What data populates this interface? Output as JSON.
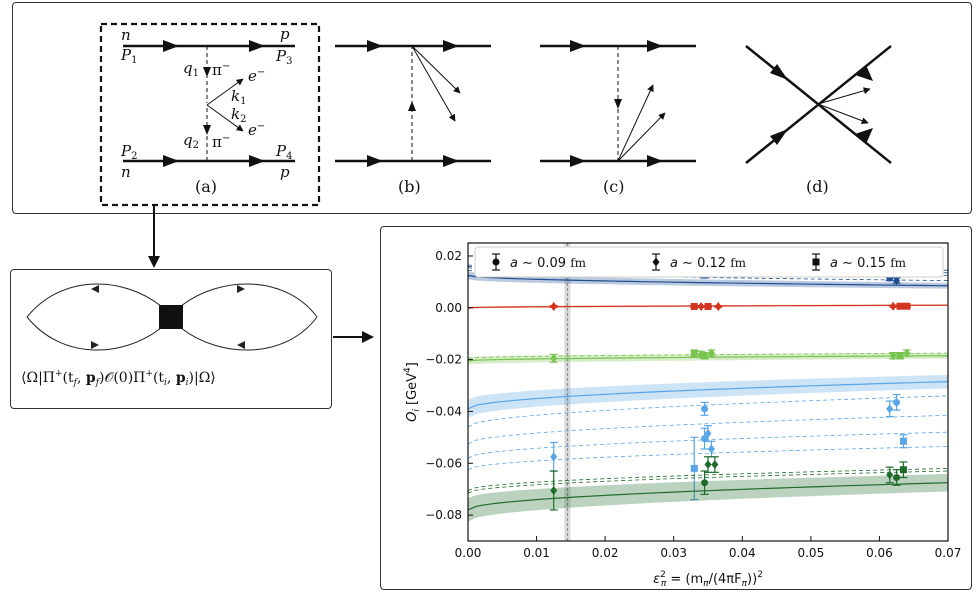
{
  "top_panel": {
    "diagram_a": {
      "labels": {
        "n_top": "n",
        "P1": "P",
        "P1_sub": "1",
        "p_top": "p",
        "P3": "P",
        "P3_sub": "3",
        "q1": "q",
        "q1_sub": "1",
        "pi_top": "π",
        "pi_top_sup": "−",
        "e_top": "e",
        "e_top_sup": "−",
        "k1": "k",
        "k1_sub": "1",
        "k2": "k",
        "k2_sub": "2",
        "e_bot": "e",
        "e_bot_sup": "−",
        "q2": "q",
        "q2_sub": "2",
        "pi_bot": "π",
        "pi_bot_sup": "−",
        "P2": "P",
        "P2_sub": "2",
        "n_bot": "n",
        "P4": "P",
        "P4_sub": "4",
        "p_bot": "p"
      },
      "caption": "(a)"
    },
    "captions": {
      "b": "(b)",
      "c": "(c)",
      "d": "(d)"
    }
  },
  "left_panel": {
    "correlator": "⟨Ω|Π⁺(t_f, p_f)𝒪(0)Π⁺(t_i, p_i)|Ω⟩",
    "parts": {
      "open": "⟨Ω|Π",
      "sup1": "+",
      "args1_open": "(t",
      "sub_f": "f",
      "comma1": ", ",
      "p_f": "p",
      "sub_pf": "f",
      "close1": ")",
      "O": "𝒪",
      "O_arg": "(0)",
      "Pi2": "Π",
      "sup2": "+",
      "args2_open": "(t",
      "sub_i": "i",
      "comma2": ", ",
      "p_i": "p",
      "sub_pi": "i",
      "close2": ")|Ω⟩"
    }
  },
  "colors": {
    "dark_blue": "#1f4e91",
    "light_blue": "#5aa5e6",
    "red": "#d2341f",
    "light_green": "#79c34f",
    "dark_green": "#1f6b2a"
  },
  "chart_data": {
    "type": "scatter",
    "xlabel": "ε²_π = (m_π/(4πF_π))²",
    "xlabel_parts": {
      "eps": "ε",
      "sup": "2",
      "sub": "π",
      "rest": " = (m",
      "sub2": "π",
      "mid": "/(4πF",
      "sub3": "π",
      "end": "))",
      "sup2": "2"
    },
    "ylabel": "O_i [GeV⁴]",
    "ylabel_parts": {
      "O": "O",
      "sub": "i",
      "unit": " [GeV",
      "sup": "4",
      "close": "]"
    },
    "xlim": [
      0,
      0.07
    ],
    "ylim": [
      -0.09,
      0.025
    ],
    "xticks": [
      "0.00",
      "0.01",
      "0.02",
      "0.03",
      "0.04",
      "0.05",
      "0.06",
      "0.07"
    ],
    "yticks": [
      "0.02",
      "0.00",
      "−0.02",
      "−0.04",
      "−0.06",
      "−0.08"
    ],
    "physical_point": 0.0145,
    "legend": [
      {
        "marker": "circle",
        "prefix": "a ∼ ",
        "value": "0.09",
        "unit": "fm"
      },
      {
        "marker": "diamond",
        "prefix": "a ∼ ",
        "value": "0.12",
        "unit": "fm"
      },
      {
        "marker": "square",
        "prefix": "a ∼ ",
        "value": "0.15",
        "unit": "fm"
      }
    ],
    "legend_placement": "top",
    "series": [
      {
        "color": "#1f4e91",
        "band": {
          "y0": 0.0125,
          "y_end": 0.0085,
          "width": 0.0015
        },
        "dashed": [
          {
            "y0": 0.0145,
            "y_end": 0.0105
          },
          {
            "y0": 0.0155,
            "y_end": 0.0125
          },
          {
            "y0": 0.016,
            "y_end": 0.0135
          },
          {
            "y0": 0.0165,
            "y_end": 0.0145
          }
        ],
        "points": [
          {
            "x": 0.0125,
            "y": 0.017,
            "err": 0.0015,
            "m": "circle"
          },
          {
            "x": 0.033,
            "y": 0.0165,
            "err": 0.001,
            "m": "square"
          },
          {
            "x": 0.034,
            "y": 0.0145,
            "err": 0.002,
            "m": "circle"
          },
          {
            "x": 0.0345,
            "y": 0.013,
            "err": 0.0015,
            "m": "square"
          },
          {
            "x": 0.0355,
            "y": 0.0145,
            "err": 0.0015,
            "m": "diamond"
          },
          {
            "x": 0.0615,
            "y": 0.0115,
            "err": 0.001,
            "m": "circle"
          },
          {
            "x": 0.0625,
            "y": 0.0105,
            "err": 0.001,
            "m": "diamond"
          },
          {
            "x": 0.0635,
            "y": 0.0155,
            "err": 0.0015,
            "m": "square"
          }
        ]
      },
      {
        "color": "#d2341f",
        "band": {
          "y0": 0.0,
          "y_end": 0.001,
          "width": 0.0004
        },
        "dashed": [],
        "points": [
          {
            "x": 0.0125,
            "y": 0.0005,
            "err": 0.0003,
            "m": "diamond"
          },
          {
            "x": 0.033,
            "y": 0.0005,
            "err": 0.0003,
            "m": "square"
          },
          {
            "x": 0.034,
            "y": 0.0005,
            "err": 0.0003,
            "m": "diamond"
          },
          {
            "x": 0.035,
            "y": 0.0005,
            "err": 0.0003,
            "m": "square"
          },
          {
            "x": 0.0365,
            "y": 0.0005,
            "err": 0.0003,
            "m": "diamond"
          },
          {
            "x": 0.062,
            "y": 0.0006,
            "err": 0.0003,
            "m": "diamond"
          },
          {
            "x": 0.063,
            "y": 0.0006,
            "err": 0.0003,
            "m": "square"
          },
          {
            "x": 0.064,
            "y": 0.0006,
            "err": 0.0003,
            "m": "square"
          }
        ]
      },
      {
        "color": "#79c34f",
        "band": {
          "y0": -0.0205,
          "y_end": -0.0185,
          "width": 0.0015
        },
        "dashed": [
          {
            "y0": -0.0195,
            "y_end": -0.0175
          }
        ],
        "points": [
          {
            "x": 0.0125,
            "y": -0.0195,
            "err": 0.0015,
            "m": "diamond"
          },
          {
            "x": 0.033,
            "y": -0.0175,
            "err": 0.0012,
            "m": "square"
          },
          {
            "x": 0.034,
            "y": -0.018,
            "err": 0.0012,
            "m": "diamond"
          },
          {
            "x": 0.0345,
            "y": -0.0185,
            "err": 0.0012,
            "m": "circle"
          },
          {
            "x": 0.0355,
            "y": -0.0175,
            "err": 0.0012,
            "m": "diamond"
          },
          {
            "x": 0.062,
            "y": -0.0185,
            "err": 0.0012,
            "m": "diamond"
          },
          {
            "x": 0.063,
            "y": -0.0185,
            "err": 0.0012,
            "m": "square"
          },
          {
            "x": 0.064,
            "y": -0.0175,
            "err": 0.0012,
            "m": "diamond"
          }
        ]
      },
      {
        "color": "#5aa5e6",
        "band": {
          "y0": -0.039,
          "y_end": -0.0285,
          "width": 0.0035
        },
        "dashed": [
          {
            "y0": -0.046,
            "y_end": -0.034
          },
          {
            "y0": -0.0525,
            "y_end": -0.0415
          },
          {
            "y0": -0.058,
            "y_end": -0.048
          },
          {
            "y0": -0.0625,
            "y_end": -0.0535
          }
        ],
        "points": [
          {
            "x": 0.0125,
            "y": -0.0575,
            "err": 0.0055,
            "m": "diamond"
          },
          {
            "x": 0.033,
            "y": -0.062,
            "err": 0.012,
            "m": "square"
          },
          {
            "x": 0.0345,
            "y": -0.0505,
            "err": 0.004,
            "m": "circle"
          },
          {
            "x": 0.0345,
            "y": -0.039,
            "err": 0.0025,
            "m": "circle"
          },
          {
            "x": 0.035,
            "y": -0.0485,
            "err": 0.003,
            "m": "diamond"
          },
          {
            "x": 0.0355,
            "y": -0.0545,
            "err": 0.003,
            "m": "diamond"
          },
          {
            "x": 0.0615,
            "y": -0.039,
            "err": 0.003,
            "m": "diamond"
          },
          {
            "x": 0.0625,
            "y": -0.0365,
            "err": 0.003,
            "m": "circle"
          },
          {
            "x": 0.0635,
            "y": -0.0515,
            "err": 0.0025,
            "m": "square"
          }
        ]
      },
      {
        "color": "#1f6b2a",
        "band": {
          "y0": -0.078,
          "y_end": -0.0675,
          "width": 0.0045
        },
        "dashed": [
          {
            "y0": -0.0715,
            "y_end": -0.063
          },
          {
            "y0": -0.0705,
            "y_end": -0.062
          }
        ],
        "points": [
          {
            "x": 0.0125,
            "y": -0.0705,
            "err": 0.0075,
            "m": "diamond"
          },
          {
            "x": 0.0345,
            "y": -0.0675,
            "err": 0.0045,
            "m": "circle"
          },
          {
            "x": 0.035,
            "y": -0.0605,
            "err": 0.003,
            "m": "diamond"
          },
          {
            "x": 0.036,
            "y": -0.0605,
            "err": 0.003,
            "m": "diamond"
          },
          {
            "x": 0.0615,
            "y": -0.0645,
            "err": 0.003,
            "m": "diamond"
          },
          {
            "x": 0.0625,
            "y": -0.0655,
            "err": 0.003,
            "m": "circle"
          },
          {
            "x": 0.0635,
            "y": -0.0625,
            "err": 0.003,
            "m": "square"
          }
        ]
      }
    ]
  }
}
